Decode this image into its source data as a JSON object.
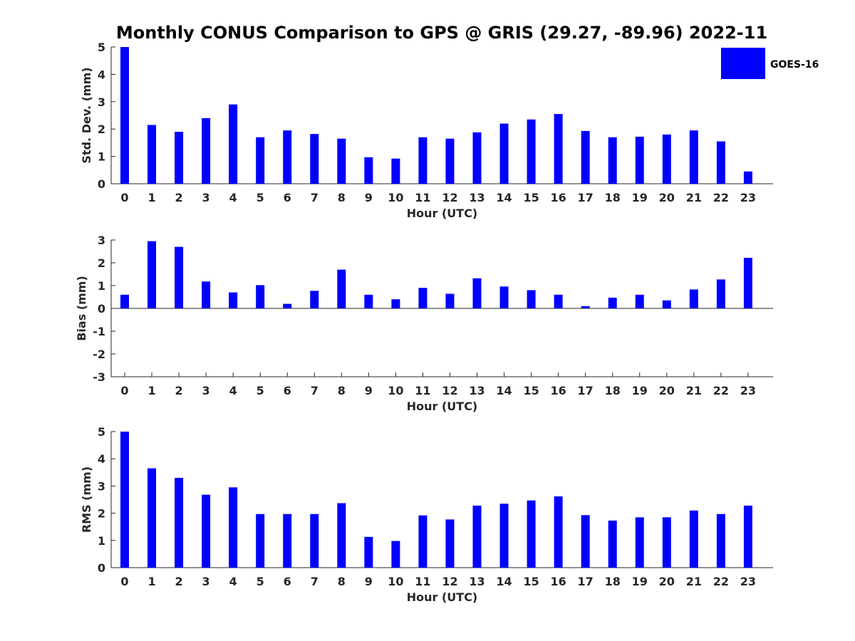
{
  "figure": {
    "title": "Monthly CONUS Comparison to GPS @ GRIS (29.27, -89.96) 2022-11",
    "legend": {
      "label": "GOES-16",
      "color": "#0000ff",
      "placement": "top-right"
    }
  },
  "chart_data": [
    {
      "type": "bar",
      "ylabel": "Std. Dev. (mm)",
      "xlabel": "Hour (UTC)",
      "ylim": [
        0,
        5
      ],
      "yticks": [
        "0",
        "1",
        "2",
        "3",
        "4",
        "5"
      ],
      "categories": [
        "0",
        "1",
        "2",
        "3",
        "4",
        "5",
        "6",
        "7",
        "8",
        "9",
        "10",
        "11",
        "12",
        "13",
        "14",
        "15",
        "16",
        "17",
        "18",
        "19",
        "20",
        "21",
        "22",
        "23"
      ],
      "series": [
        {
          "name": "GOES-16",
          "values": [
            5.0,
            2.15,
            1.9,
            2.4,
            2.9,
            1.7,
            1.95,
            1.82,
            1.65,
            0.97,
            0.92,
            1.7,
            1.65,
            1.88,
            2.2,
            2.35,
            2.55,
            1.93,
            1.7,
            1.72,
            1.8,
            1.95,
            1.55,
            0.45
          ]
        }
      ]
    },
    {
      "type": "bar",
      "ylabel": "Bias (mm)",
      "xlabel": "Hour (UTC)",
      "ylim": [
        -3,
        3
      ],
      "yticks": [
        "-3",
        "-2",
        "-1",
        "0",
        "1",
        "2",
        "3"
      ],
      "categories": [
        "0",
        "1",
        "2",
        "3",
        "4",
        "5",
        "6",
        "7",
        "8",
        "9",
        "10",
        "11",
        "12",
        "13",
        "14",
        "15",
        "16",
        "17",
        "18",
        "19",
        "20",
        "21",
        "22",
        "23"
      ],
      "series": [
        {
          "name": "GOES-16",
          "values": [
            0.6,
            2.95,
            2.7,
            1.18,
            0.7,
            1.02,
            0.2,
            0.77,
            1.7,
            0.6,
            0.4,
            0.9,
            0.64,
            1.32,
            0.96,
            0.8,
            0.6,
            0.1,
            0.47,
            0.6,
            0.35,
            0.83,
            1.27,
            2.22
          ]
        }
      ]
    },
    {
      "type": "bar",
      "ylabel": "RMS (mm)",
      "xlabel": "Hour (UTC)",
      "ylim": [
        0,
        5
      ],
      "yticks": [
        "0",
        "1",
        "2",
        "3",
        "4",
        "5"
      ],
      "categories": [
        "0",
        "1",
        "2",
        "3",
        "4",
        "5",
        "6",
        "7",
        "8",
        "9",
        "10",
        "11",
        "12",
        "13",
        "14",
        "15",
        "16",
        "17",
        "18",
        "19",
        "20",
        "21",
        "22",
        "23"
      ],
      "series": [
        {
          "name": "GOES-16",
          "values": [
            5.0,
            3.65,
            3.3,
            2.68,
            2.95,
            1.97,
            1.97,
            1.97,
            2.37,
            1.13,
            0.98,
            1.92,
            1.77,
            2.28,
            2.35,
            2.47,
            2.62,
            1.93,
            1.73,
            1.85,
            1.85,
            2.1,
            1.97,
            2.28
          ]
        }
      ]
    }
  ]
}
